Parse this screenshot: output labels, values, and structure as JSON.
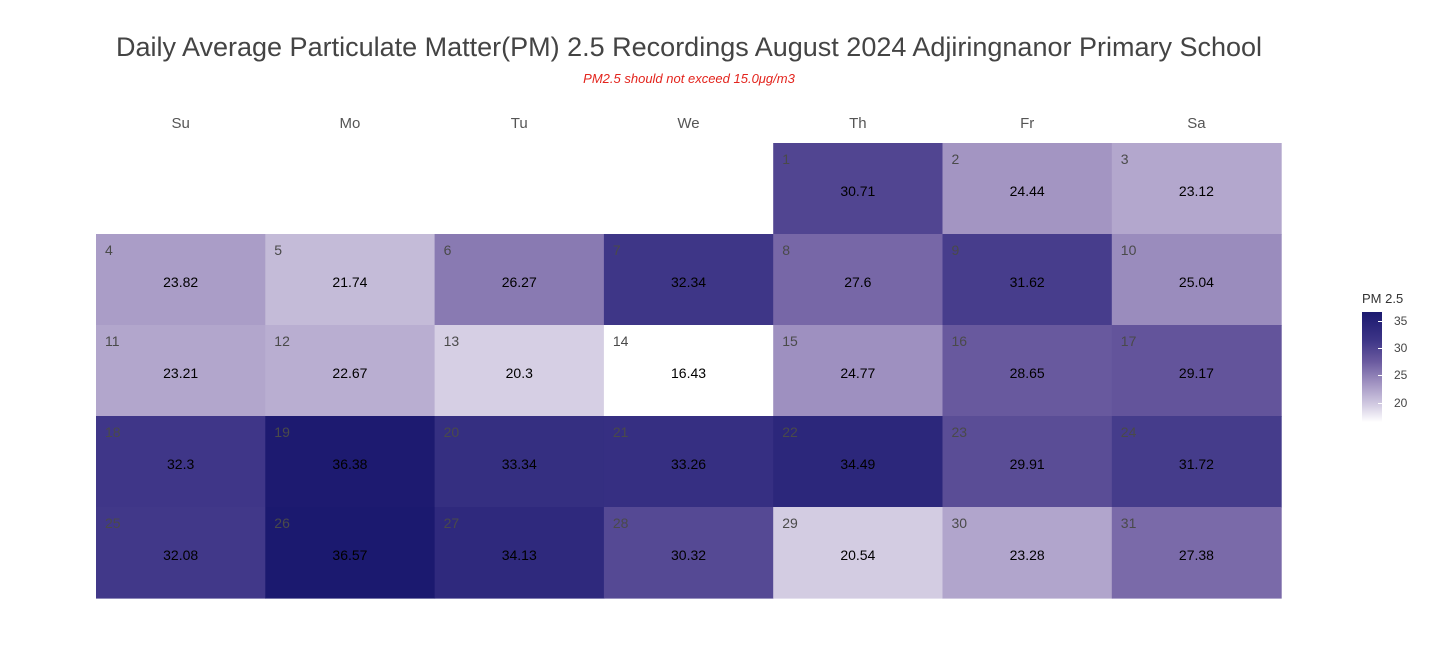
{
  "chart_data": {
    "type": "heatmap",
    "title": "Daily Average Particulate Matter(PM) 2.5 Recordings August 2024 Adjiringnanor Primary School",
    "subtitle": "PM2.5 should not exceed 15.0μg/m3",
    "weekdays": [
      "Su",
      "Mo",
      "Tu",
      "We",
      "Th",
      "Fr",
      "Sa"
    ],
    "first_weekday_index": 4,
    "days": [
      1,
      2,
      3,
      4,
      5,
      6,
      7,
      8,
      9,
      10,
      11,
      12,
      13,
      14,
      15,
      16,
      17,
      18,
      19,
      20,
      21,
      22,
      23,
      24,
      25,
      26,
      27,
      28,
      29,
      30,
      31
    ],
    "values": [
      30.71,
      24.44,
      23.12,
      23.82,
      21.74,
      26.27,
      32.34,
      27.6,
      31.62,
      25.04,
      23.21,
      22.67,
      20.3,
      16.43,
      24.77,
      28.65,
      29.17,
      32.3,
      36.38,
      33.34,
      33.26,
      34.49,
      29.91,
      31.72,
      32.08,
      36.57,
      34.13,
      30.32,
      20.54,
      23.28,
      27.38
    ],
    "value_labels": [
      "30.71",
      "24.44",
      "23.12",
      "23.82",
      "21.74",
      "26.27",
      "32.34",
      "27.6",
      "31.62",
      "25.04",
      "23.21",
      "22.67",
      "20.3",
      "16.43",
      "24.77",
      "28.65",
      "29.17",
      "32.3",
      "36.38",
      "33.34",
      "33.26",
      "34.49",
      "29.91",
      "31.72",
      "32.08",
      "36.57",
      "34.13",
      "30.32",
      "20.54",
      "23.28",
      "27.38"
    ],
    "legend": {
      "title": "PM 2.5",
      "ticks": [
        35,
        30,
        25,
        20
      ],
      "tick_labels": [
        "35",
        "30",
        "25",
        "20"
      ],
      "range": [
        16.43,
        36.57
      ],
      "placement": "right"
    },
    "colors": {
      "low": "#ffffff",
      "high": "#1b196f",
      "subtitle": "#e3241d"
    }
  }
}
